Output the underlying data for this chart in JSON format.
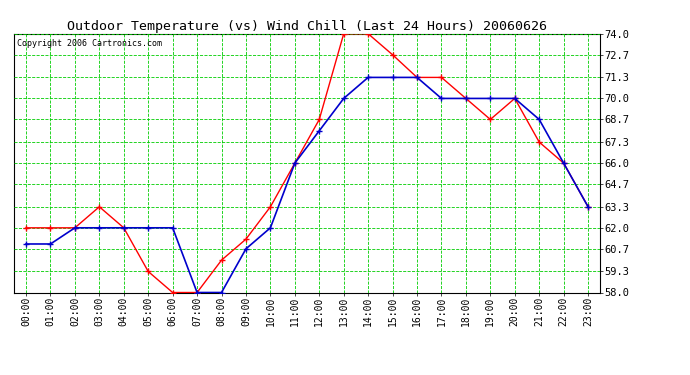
{
  "title": "Outdoor Temperature (vs) Wind Chill (Last 24 Hours) 20060626",
  "copyright": "Copyright 2006 Cartronics.com",
  "hours": [
    "00:00",
    "01:00",
    "02:00",
    "03:00",
    "04:00",
    "05:00",
    "06:00",
    "07:00",
    "08:00",
    "09:00",
    "10:00",
    "11:00",
    "12:00",
    "13:00",
    "14:00",
    "15:00",
    "16:00",
    "17:00",
    "18:00",
    "19:00",
    "20:00",
    "21:00",
    "22:00",
    "23:00"
  ],
  "temp": [
    62.0,
    62.0,
    62.0,
    63.3,
    62.0,
    59.3,
    58.0,
    58.0,
    60.0,
    61.3,
    63.3,
    66.0,
    68.7,
    74.0,
    74.0,
    72.7,
    71.3,
    71.3,
    70.0,
    68.7,
    70.0,
    67.3,
    66.0,
    63.3
  ],
  "windchill": [
    61.0,
    61.0,
    62.0,
    62.0,
    62.0,
    62.0,
    62.0,
    58.0,
    58.0,
    60.7,
    62.0,
    66.0,
    68.0,
    70.0,
    71.3,
    71.3,
    71.3,
    70.0,
    70.0,
    70.0,
    70.0,
    68.7,
    66.0,
    63.3
  ],
  "ylim": [
    58.0,
    74.0
  ],
  "yticks": [
    58.0,
    59.3,
    60.7,
    62.0,
    63.3,
    64.7,
    66.0,
    67.3,
    68.7,
    70.0,
    71.3,
    72.7,
    74.0
  ],
  "temp_color": "#ff0000",
  "windchill_color": "#0000cc",
  "grid_color": "#00cc00",
  "background_color": "#ffffff",
  "title_fontsize": 9.5,
  "copyright_fontsize": 6,
  "axis_label_fontsize": 7,
  "ytick_fontsize": 7.5
}
